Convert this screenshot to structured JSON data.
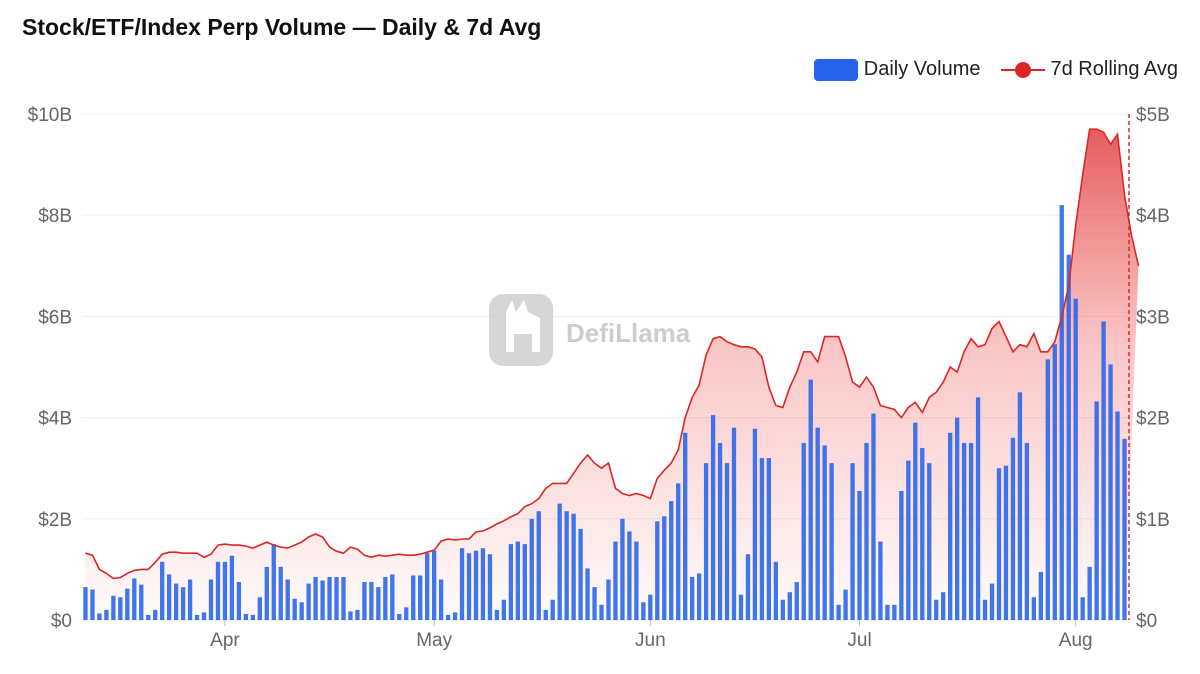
{
  "chart_data": {
    "type": "bar",
    "title": "Stock/ETF/Index Perp Volume — Daily & 7d Avg",
    "watermark": "DefiLlama",
    "colors": {
      "bar": "#2563eb",
      "line": "#dc2626"
    },
    "legend": {
      "position": "top-right",
      "entries": [
        "Daily Volume",
        "7d Rolling Avg"
      ]
    },
    "x_labels": [
      {
        "label": "Apr",
        "index": 20
      },
      {
        "label": "May",
        "index": 50
      },
      {
        "label": "Jun",
        "index": 81
      },
      {
        "label": "Jul",
        "index": 111
      },
      {
        "label": "Aug",
        "index": 142
      }
    ],
    "y_left": {
      "ticks": [
        "$0",
        "$2B",
        "$4B",
        "$6B",
        "$8B",
        "$10B"
      ],
      "range": [
        0,
        10
      ]
    },
    "y_right": {
      "ticks": [
        "$0",
        "$1B",
        "$2B",
        "$3B",
        "$4B",
        "$5B"
      ],
      "range": [
        0,
        5
      ]
    },
    "unit": "billions USD",
    "series": [
      {
        "name": "Daily Volume",
        "axis": "left",
        "values": [
          0.65,
          0.6,
          0.13,
          0.2,
          0.48,
          0.45,
          0.62,
          0.82,
          0.7,
          0.1,
          0.2,
          1.15,
          0.9,
          0.72,
          0.65,
          0.8,
          0.1,
          0.15,
          0.8,
          1.15,
          1.15,
          1.27,
          0.75,
          0.12,
          0.1,
          0.45,
          1.05,
          1.5,
          1.05,
          0.8,
          0.42,
          0.35,
          0.72,
          0.85,
          0.78,
          0.85,
          0.85,
          0.85,
          0.17,
          0.2,
          0.75,
          0.75,
          0.65,
          0.85,
          0.9,
          0.12,
          0.25,
          0.88,
          0.88,
          1.32,
          1.37,
          0.8,
          0.1,
          0.15,
          1.42,
          1.32,
          1.37,
          1.42,
          1.3,
          0.2,
          0.4,
          1.5,
          1.55,
          1.5,
          2.0,
          2.15,
          0.2,
          0.4,
          2.3,
          2.15,
          2.1,
          1.8,
          1.02,
          0.65,
          0.3,
          0.8,
          1.55,
          2.0,
          1.75,
          1.55,
          0.35,
          0.5,
          1.95,
          2.05,
          2.35,
          2.7,
          3.7,
          0.85,
          0.92,
          3.1,
          4.05,
          3.5,
          3.1,
          3.8,
          0.5,
          1.3,
          3.78,
          3.2,
          3.2,
          1.15,
          0.4,
          0.55,
          0.75,
          3.5,
          4.75,
          3.8,
          3.45,
          3.1,
          0.3,
          0.6,
          3.1,
          2.55,
          3.5,
          4.08,
          1.55,
          0.3,
          0.3,
          2.55,
          3.15,
          3.9,
          3.4,
          3.1,
          0.4,
          0.55,
          3.7,
          4.0,
          3.5,
          3.5,
          4.4,
          0.4,
          0.72,
          3.0,
          3.05,
          3.6,
          4.5,
          3.5,
          0.45,
          0.95,
          5.15,
          5.45,
          8.2,
          7.22,
          6.35,
          0.45,
          1.05,
          4.32,
          5.9,
          5.05,
          4.12,
          3.58
        ]
      },
      {
        "name": "7d Rolling Avg",
        "axis": "right",
        "values": [
          0.66,
          0.64,
          0.5,
          0.46,
          0.41,
          0.42,
          0.46,
          0.49,
          0.5,
          0.5,
          0.57,
          0.65,
          0.67,
          0.67,
          0.66,
          0.66,
          0.66,
          0.62,
          0.65,
          0.74,
          0.75,
          0.74,
          0.74,
          0.73,
          0.71,
          0.74,
          0.77,
          0.74,
          0.72,
          0.71,
          0.74,
          0.77,
          0.82,
          0.85,
          0.82,
          0.72,
          0.68,
          0.66,
          0.72,
          0.7,
          0.64,
          0.62,
          0.64,
          0.63,
          0.64,
          0.65,
          0.64,
          0.64,
          0.65,
          0.67,
          0.69,
          0.78,
          0.8,
          0.79,
          0.8,
          0.8,
          0.87,
          0.88,
          0.91,
          0.95,
          0.98,
          1.02,
          1.05,
          1.12,
          1.15,
          1.2,
          1.3,
          1.35,
          1.35,
          1.35,
          1.45,
          1.55,
          1.63,
          1.55,
          1.5,
          1.55,
          1.3,
          1.25,
          1.23,
          1.25,
          1.23,
          1.2,
          1.4,
          1.48,
          1.55,
          1.68,
          2.0,
          2.2,
          2.32,
          2.62,
          2.78,
          2.8,
          2.75,
          2.72,
          2.7,
          2.7,
          2.68,
          2.6,
          2.3,
          2.12,
          2.1,
          2.3,
          2.45,
          2.65,
          2.65,
          2.55,
          2.8,
          2.8,
          2.8,
          2.6,
          2.35,
          2.3,
          2.4,
          2.3,
          2.12,
          2.1,
          2.08,
          2.0,
          2.1,
          2.15,
          2.05,
          2.2,
          2.25,
          2.35,
          2.5,
          2.45,
          2.65,
          2.78,
          2.7,
          2.72,
          2.88,
          2.95,
          2.8,
          2.65,
          2.72,
          2.7,
          2.83,
          2.65,
          2.65,
          2.75,
          3.0,
          3.3,
          3.9,
          4.4,
          4.85,
          4.85,
          4.82,
          4.7,
          4.8,
          4.2,
          3.8,
          3.5
        ]
      }
    ]
  }
}
